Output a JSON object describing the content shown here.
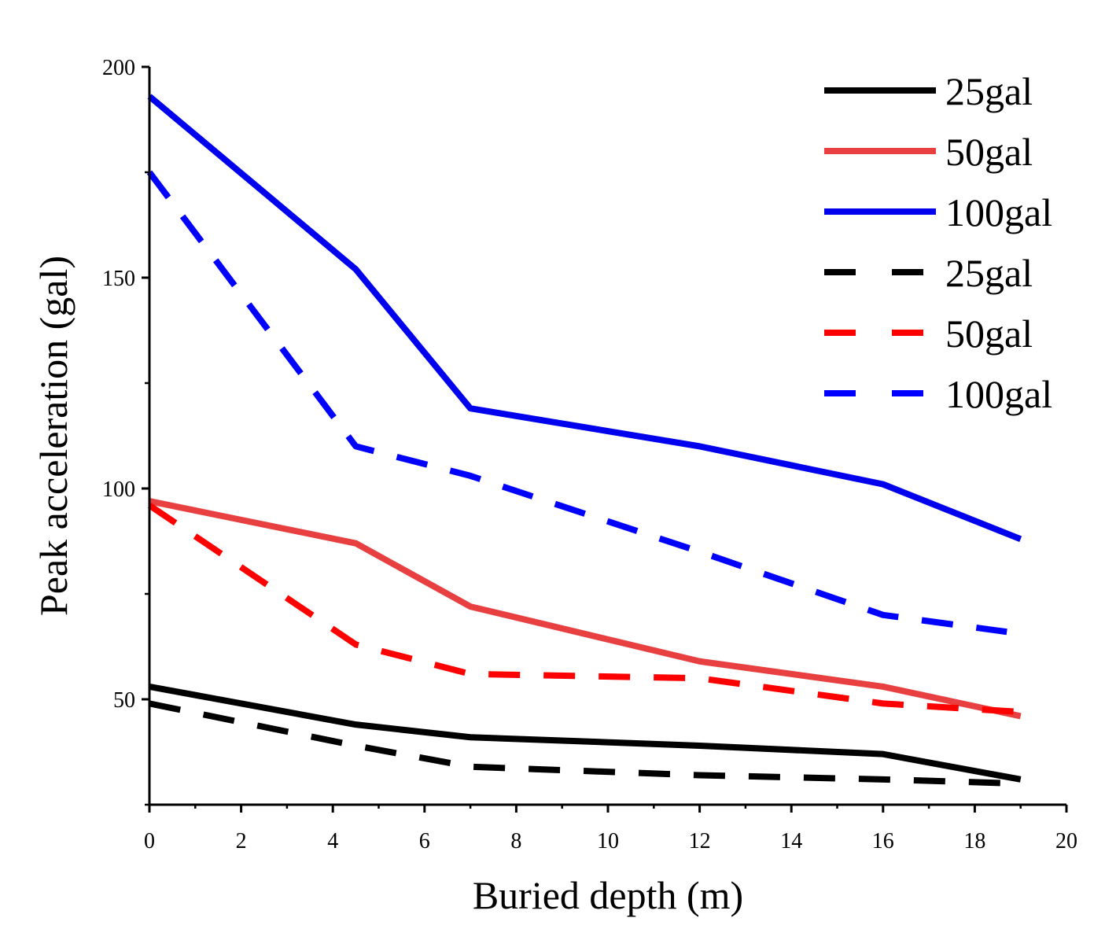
{
  "chart_data": {
    "type": "line",
    "title": "",
    "xlabel": "Buried depth (m)",
    "ylabel": "Peak acceleration (gal)",
    "xlim": [
      0,
      20
    ],
    "ylim": [
      25,
      200
    ],
    "xticks": [
      0,
      2,
      4,
      6,
      8,
      10,
      12,
      14,
      16,
      18,
      20
    ],
    "yticks": [
      50,
      100,
      150,
      200
    ],
    "grid": false,
    "legend_position": "top-right",
    "series": [
      {
        "name": "25gal",
        "style": "solid",
        "color": "#000000",
        "x": [
          0,
          4.5,
          7,
          12,
          16,
          19
        ],
        "values": [
          53,
          44,
          41,
          39,
          37,
          31
        ]
      },
      {
        "name": "50gal",
        "style": "solid",
        "color": "#e84040",
        "x": [
          0,
          4.5,
          7,
          12,
          16,
          19
        ],
        "values": [
          97,
          87,
          72,
          59,
          53,
          46
        ]
      },
      {
        "name": "100gal",
        "style": "solid",
        "color": "#0000ee",
        "x": [
          0,
          4.5,
          7,
          12,
          16,
          19
        ],
        "values": [
          193,
          152,
          119,
          110,
          101,
          88
        ]
      },
      {
        "name": "25gal",
        "style": "dashed",
        "color": "#000000",
        "x": [
          0,
          4.5,
          7,
          12,
          16,
          19
        ],
        "values": [
          49,
          39,
          34,
          32,
          31,
          30
        ]
      },
      {
        "name": "50gal",
        "style": "dashed",
        "color": "#ff0000",
        "x": [
          0,
          4.5,
          7,
          12,
          16,
          19
        ],
        "values": [
          96,
          63,
          56,
          55,
          49,
          47
        ]
      },
      {
        "name": "100gal",
        "style": "dashed",
        "color": "#0000ff",
        "x": [
          0,
          4.5,
          7,
          12,
          16,
          18.7
        ],
        "values": [
          175,
          110,
          103,
          85,
          70,
          66
        ]
      }
    ]
  }
}
